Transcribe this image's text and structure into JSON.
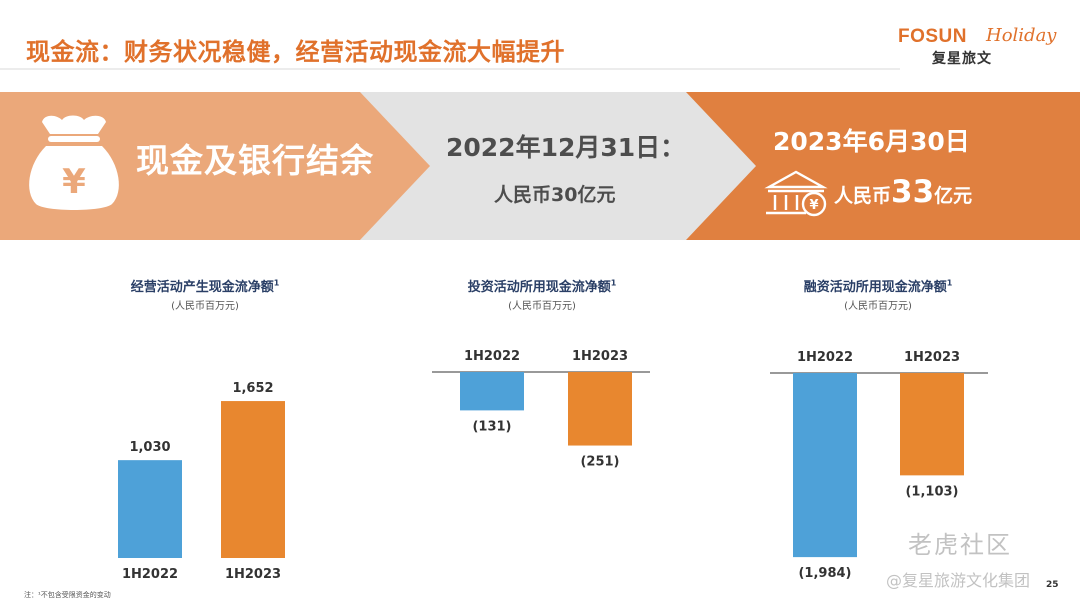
{
  "title": "现金流：财务状况稳健，经营活动现金流大幅提升",
  "logo": {
    "brand": "FOSUN",
    "script": "Holiday",
    "cn": "复星旅文"
  },
  "banner": {
    "label": "现金及银行结余",
    "left_date": "2022年12月31日：",
    "left_amount": "人民币30亿元",
    "right_date": "2023年6月30日",
    "right_amount_prefix": "人民币",
    "right_amount_value": "33",
    "right_amount_suffix": "亿元",
    "colors": {
      "left": "#eba87a",
      "mid": "#e3e3e3",
      "right": "#e08040"
    },
    "icons": [
      "money-bag-icon",
      "bank-icon"
    ]
  },
  "chart_data": [
    {
      "type": "bar",
      "title": "经营活动产生现金流净额",
      "title_mark": "1",
      "subtitle": "(人民币百万元)",
      "categories": [
        "1H2022",
        "1H2023"
      ],
      "values": [
        1030,
        1652
      ],
      "value_labels": [
        "1,030",
        "1,652"
      ],
      "colors": [
        "#4ea1d8",
        "#e8872f"
      ]
    },
    {
      "type": "bar",
      "title": "投资活动所用现金流净额",
      "title_mark": "1",
      "subtitle": "(人民币百万元)",
      "categories": [
        "1H2022",
        "1H2023"
      ],
      "values": [
        -131,
        -251
      ],
      "value_labels": [
        "(131)",
        "(251)"
      ],
      "colors": [
        "#4ea1d8",
        "#e8872f"
      ]
    },
    {
      "type": "bar",
      "title": "融资活动所用现金流净额",
      "title_mark": "1",
      "subtitle": "(人民币百万元)",
      "categories": [
        "1H2022",
        "1H2023"
      ],
      "values": [
        -1984,
        -1103
      ],
      "value_labels": [
        "(1,984)",
        "(1,103)"
      ],
      "colors": [
        "#4ea1d8",
        "#e8872f"
      ]
    }
  ],
  "footnote": "注：¹不包含受限资金的变动",
  "page_number": "25",
  "watermark": {
    "line1": "老虎社区",
    "line2": "@复星旅游文化集团"
  }
}
